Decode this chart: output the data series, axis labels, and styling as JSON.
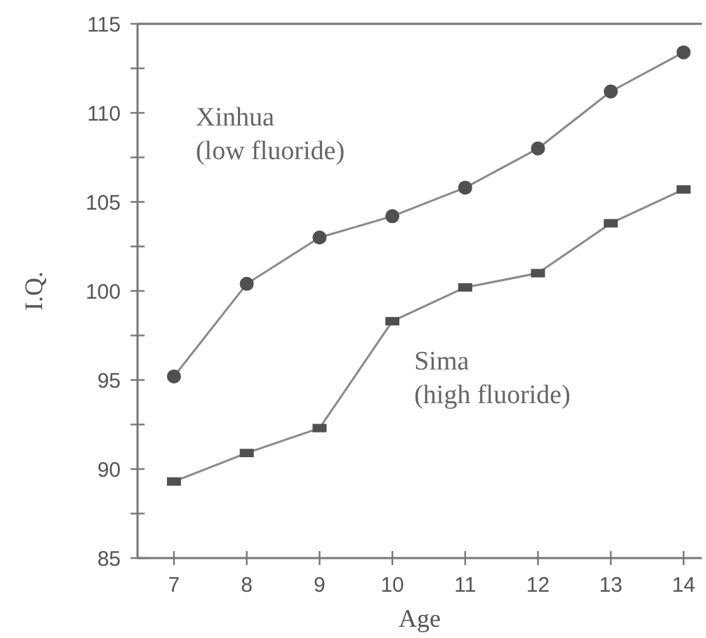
{
  "chart_data": {
    "type": "line",
    "xlabel": "Age",
    "ylabel": "I.Q.",
    "x": [
      7,
      8,
      9,
      10,
      11,
      12,
      13,
      14
    ],
    "series": [
      {
        "name": "Xinhua (low fluoride)",
        "color": "#505050",
        "marker": "circle",
        "values": [
          95.2,
          100.4,
          103.0,
          104.2,
          105.8,
          108.0,
          111.2,
          113.4
        ]
      },
      {
        "name": "Sima (high fluoride)",
        "color": "#505050",
        "marker": "square",
        "values": [
          89.3,
          90.9,
          92.3,
          98.3,
          100.2,
          101.0,
          103.8,
          105.7
        ]
      }
    ],
    "xlim": [
      6.5,
      14.25
    ],
    "xticks": [
      7,
      8,
      9,
      10,
      11,
      12,
      13,
      14
    ],
    "ylim": [
      85,
      115
    ],
    "yticks": [
      85,
      {
        "value": 87.5,
        "label": null
      },
      90,
      {
        "value": 92.5,
        "label": null
      },
      95,
      {
        "value": 97.5,
        "label": null
      },
      100,
      {
        "value": 102.5,
        "label": null
      },
      105,
      {
        "value": 107.5,
        "label": null
      },
      110,
      {
        "value": 112.5,
        "label": null
      },
      115
    ],
    "grid": false,
    "legend": false,
    "line_style": "solid"
  }
}
